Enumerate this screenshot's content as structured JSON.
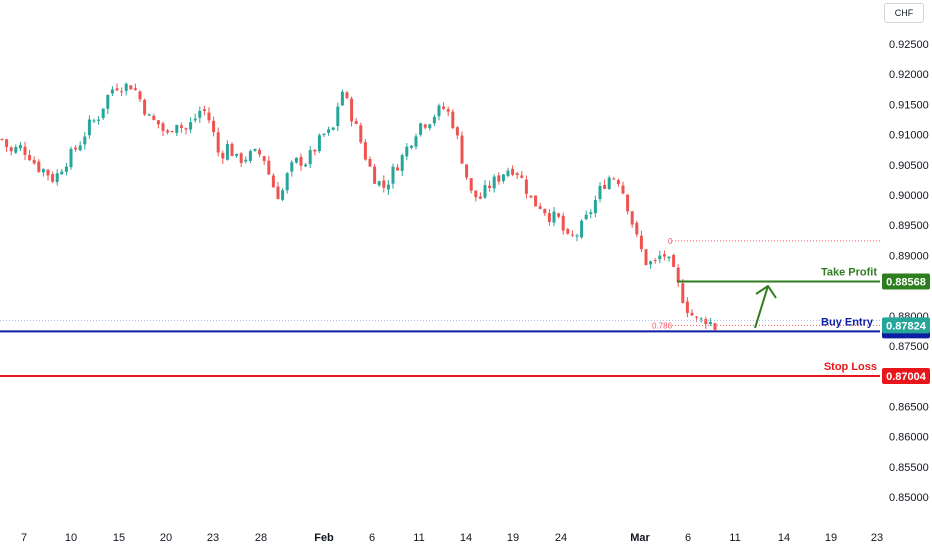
{
  "currency": "CHF",
  "chart_data": {
    "type": "candlestick",
    "title": "",
    "ylim": [
      0.8475,
      0.9285
    ],
    "y_ticks": [
      "0.92500",
      "0.92000",
      "0.91500",
      "0.91000",
      "0.90500",
      "0.90000",
      "0.89500",
      "0.89000",
      "0.88500",
      "0.88000",
      "0.87500",
      "0.87000",
      "0.86500",
      "0.86000",
      "0.85500",
      "0.85000"
    ],
    "x_ticks": [
      {
        "label": "7",
        "bold": false
      },
      {
        "label": "10",
        "bold": false
      },
      {
        "label": "15",
        "bold": false
      },
      {
        "label": "20",
        "bold": false
      },
      {
        "label": "23",
        "bold": false
      },
      {
        "label": "28",
        "bold": false
      },
      {
        "label": "Feb",
        "bold": true
      },
      {
        "label": "6",
        "bold": false
      },
      {
        "label": "11",
        "bold": false
      },
      {
        "label": "14",
        "bold": false
      },
      {
        "label": "19",
        "bold": false
      },
      {
        "label": "24",
        "bold": false
      },
      {
        "label": "Mar",
        "bold": true
      },
      {
        "label": "6",
        "bold": false
      },
      {
        "label": "11",
        "bold": false
      },
      {
        "label": "14",
        "bold": false
      },
      {
        "label": "19",
        "bold": false
      },
      {
        "label": "23",
        "bold": false
      }
    ],
    "path_points": [
      [
        0.91,
        0.9085
      ],
      [
        0.908,
        0.906
      ],
      [
        0.907,
        0.909
      ],
      [
        0.906,
        0.908
      ],
      [
        0.905,
        0.9045
      ],
      [
        0.902,
        0.906
      ],
      [
        0.904,
        0.901
      ],
      [
        0.903,
        0.907
      ],
      [
        0.906,
        0.9075
      ],
      [
        0.909,
        0.9085
      ],
      [
        0.911,
        0.912
      ],
      [
        0.9125,
        0.913
      ],
      [
        0.915,
        0.917
      ],
      [
        0.918,
        0.9185
      ],
      [
        0.917,
        0.919
      ],
      [
        0.918,
        0.9185
      ],
      [
        0.916,
        0.915
      ],
      [
        0.913,
        0.912
      ],
      [
        0.9115,
        0.912
      ],
      [
        0.9085,
        0.911
      ],
      [
        0.912,
        0.913
      ],
      [
        0.911,
        0.91
      ],
      [
        0.9115,
        0.913
      ],
      [
        0.914,
        0.915
      ],
      [
        0.913,
        0.911
      ],
      [
        0.906,
        0.9065
      ],
      [
        0.908,
        0.9085
      ],
      [
        0.906,
        0.9055
      ],
      [
        0.906,
        0.9065
      ],
      [
        0.907,
        0.9065
      ],
      [
        0.9065,
        0.907
      ],
      [
        0.904,
        0.9
      ],
      [
        0.898,
        0.901
      ],
      [
        0.903,
        0.905
      ],
      [
        0.906,
        0.9055
      ],
      [
        0.905,
        0.906
      ],
      [
        0.9075,
        0.908
      ],
      [
        0.909,
        0.911
      ],
      [
        0.91,
        0.9105
      ],
      [
        0.9195,
        0.916
      ],
      [
        0.915,
        0.913
      ],
      [
        0.912,
        0.908
      ],
      [
        0.906,
        0.905
      ],
      [
        0.903,
        0.902
      ],
      [
        0.901,
        0.9015
      ],
      [
        0.903,
        0.905
      ],
      [
        0.906,
        0.9065
      ],
      [
        0.908,
        0.91
      ],
      [
        0.9115,
        0.912
      ],
      [
        0.912,
        0.9125
      ],
      [
        0.913,
        0.9145
      ],
      [
        0.914,
        0.915
      ],
      [
        0.913,
        0.91
      ],
      [
        0.907,
        0.904
      ],
      [
        0.901,
        0.899
      ],
      [
        0.899,
        0.9
      ],
      [
        0.901,
        0.902
      ],
      [
        0.903,
        0.9025
      ],
      [
        0.904,
        0.9045
      ],
      [
        0.905,
        0.904
      ],
      [
        0.903,
        0.901
      ],
      [
        0.8995,
        0.898
      ],
      [
        0.8985,
        0.898
      ],
      [
        0.897,
        0.896
      ],
      [
        0.897,
        0.895
      ],
      [
        0.893,
        0.892
      ],
      [
        0.893,
        0.8935
      ],
      [
        0.895,
        0.896
      ],
      [
        0.8975,
        0.899
      ],
      [
        0.901,
        0.902
      ],
      [
        0.903,
        0.9035
      ],
      [
        0.903,
        0.902
      ],
      [
        0.9,
        0.896
      ],
      [
        0.894,
        0.8915
      ],
      [
        0.89,
        0.888
      ],
      [
        0.889,
        0.888
      ],
      [
        0.89,
        0.891
      ],
      [
        0.889,
        0.887
      ],
      [
        0.885,
        0.883
      ],
      [
        0.8815,
        0.88
      ],
      [
        0.8795,
        0.8785
      ],
      [
        0.88,
        0.879
      ],
      [
        0.8785,
        0.8778
      ]
    ],
    "levels": [
      {
        "name": "Take Profit",
        "value": 0.88568,
        "label": "0.88568",
        "color": "#2e7d1e"
      },
      {
        "name": "Buy Entry",
        "value": 0.87824,
        "label": "0.87824",
        "color": "#0d1ea3"
      },
      {
        "name": "Stop Loss",
        "value": 0.87004,
        "label": "0.87004",
        "color": "#e8161b"
      }
    ],
    "fib": [
      {
        "label": "0",
        "value": 0.8924
      },
      {
        "label": "0.786",
        "value": 0.87824
      }
    ],
    "colors": {
      "up": "#26a69a",
      "down": "#ef5350",
      "current_price": "#26a69a",
      "blue_line": "#0d1ea3"
    }
  }
}
